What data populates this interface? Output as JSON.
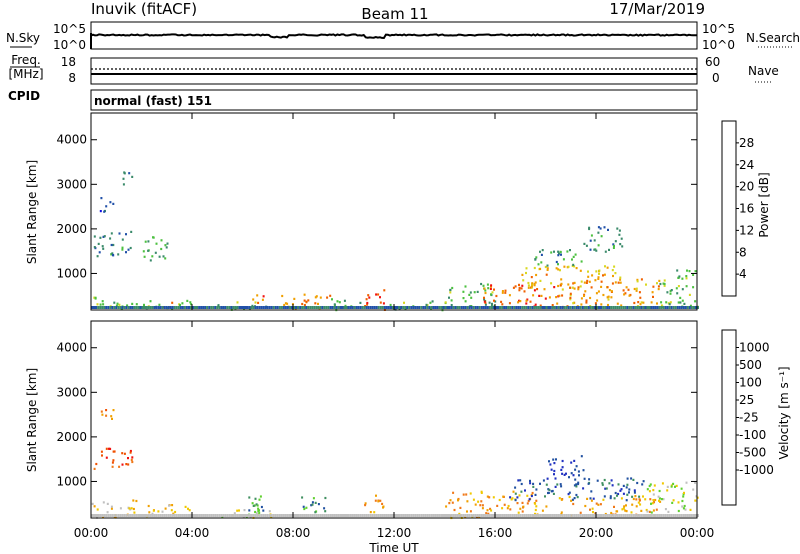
{
  "header": {
    "station": "Inuvik (fitACF)",
    "beam": "Beam 11",
    "date": "17/Mar/2019"
  },
  "noise_panel": {
    "left_label": "N.Sky",
    "left_ticks": [
      "10^5",
      "10^0"
    ],
    "right_ticks": [
      "10^5",
      "10^0"
    ],
    "right_label": "N.Search"
  },
  "freq_panel": {
    "left_label_line1": "Freq.",
    "left_label_line2": "[MHz]",
    "left_ticks": [
      "18",
      "8"
    ],
    "right_ticks": [
      "60",
      "0"
    ],
    "right_label": "Nave"
  },
  "cpid_panel": {
    "label": "CPID",
    "text": "normal (fast) 151"
  },
  "x_axis": {
    "label": "Time UT",
    "ticks": [
      "00:00",
      "04:00",
      "08:00",
      "12:00",
      "16:00",
      "20:00",
      "00:00"
    ]
  },
  "colors": {
    "power_scale": [
      "#1010e0",
      "#2050a8",
      "#3a8a6a",
      "#4cc040",
      "#d8d820",
      "#f0a000",
      "#f06000",
      "#f01010"
    ],
    "velocity_scale": [
      "#f01010",
      "#f05000",
      "#f07818",
      "#f0a000",
      "#f0c800",
      "#c0c0c0",
      "#60d030",
      "#409060",
      "#2050a0",
      "#2030c0"
    ]
  },
  "chart_data": [
    {
      "type": "heatmap",
      "name": "power",
      "ylabel": "Slant Range [km]",
      "xlabel": "",
      "x_range_hours": [
        0,
        24
      ],
      "ylim": [
        180,
        4600
      ],
      "yticks": [
        "1000",
        "2000",
        "3000",
        "4000"
      ],
      "ytick_values": [
        1000,
        2000,
        3000,
        4000
      ],
      "colorbar": {
        "label": "Power [dB]",
        "ticks": [
          "4",
          "8",
          "12",
          "16",
          "20",
          "24",
          "28"
        ],
        "range": [
          0,
          30
        ]
      },
      "regions": [
        {
          "t0": 0.0,
          "t1": 1.8,
          "r0": 200,
          "r1": 500,
          "v": 15
        },
        {
          "t0": 0.1,
          "t1": 1.6,
          "r0": 1400,
          "r1": 2000,
          "v": 9
        },
        {
          "t0": 0.3,
          "t1": 0.9,
          "r0": 2400,
          "r1": 2750,
          "v": 6
        },
        {
          "t0": 1.0,
          "t1": 1.6,
          "r0": 3000,
          "r1": 3300,
          "v": 7
        },
        {
          "t0": 2.0,
          "t1": 3.0,
          "r0": 1300,
          "r1": 1900,
          "v": 13
        },
        {
          "t0": 2.0,
          "t1": 4.0,
          "r0": 200,
          "r1": 420,
          "v": 14
        },
        {
          "t0": 2.8,
          "t1": 3.3,
          "r0": 200,
          "r1": 380,
          "v": 27
        },
        {
          "t0": 5.0,
          "t1": 7.2,
          "r0": 200,
          "r1": 380,
          "v": 14
        },
        {
          "t0": 6.2,
          "t1": 6.8,
          "r0": 250,
          "r1": 560,
          "v": 26
        },
        {
          "t0": 7.5,
          "t1": 9.5,
          "r0": 220,
          "r1": 600,
          "v": 24
        },
        {
          "t0": 9.5,
          "t1": 10.8,
          "r0": 200,
          "r1": 450,
          "v": 13
        },
        {
          "t0": 10.8,
          "t1": 11.6,
          "r0": 200,
          "r1": 700,
          "v": 28
        },
        {
          "t0": 11.6,
          "t1": 14.0,
          "r0": 200,
          "r1": 400,
          "v": 14
        },
        {
          "t0": 14.0,
          "t1": 16.0,
          "r0": 250,
          "r1": 800,
          "v": 13
        },
        {
          "t0": 15.5,
          "t1": 18.5,
          "r0": 250,
          "r1": 800,
          "v": 26
        },
        {
          "t0": 17.0,
          "t1": 21.0,
          "r0": 700,
          "r1": 1200,
          "v": 21
        },
        {
          "t0": 18.5,
          "t1": 22.5,
          "r0": 250,
          "r1": 900,
          "v": 23
        },
        {
          "t0": 22.5,
          "t1": 24.0,
          "r0": 250,
          "r1": 1100,
          "v": 14
        },
        {
          "t0": 17.5,
          "t1": 19.5,
          "r0": 1200,
          "r1": 1600,
          "v": 11
        },
        {
          "t0": 19.5,
          "t1": 21.0,
          "r0": 1500,
          "r1": 2100,
          "v": 9
        }
      ]
    },
    {
      "type": "heatmap",
      "name": "velocity",
      "ylabel": "Slant Range [km]",
      "xlabel": "Time UT",
      "x_range_hours": [
        0,
        24
      ],
      "ylim": [
        180,
        4600
      ],
      "yticks": [
        "1000",
        "2000",
        "3000",
        "4000"
      ],
      "ytick_values": [
        1000,
        2000,
        3000,
        4000
      ],
      "colorbar": {
        "label": "Velocity [m s⁻¹]",
        "ticks": [
          "1000",
          "500",
          "100",
          "25",
          "-25",
          "-100",
          "-500",
          "-1000"
        ]
      },
      "regions": [
        {
          "t0": 0.0,
          "t1": 1.8,
          "r0": 200,
          "r1": 600,
          "v": 4
        },
        {
          "t0": 0.1,
          "t1": 1.6,
          "r0": 1300,
          "r1": 1800,
          "v": 1
        },
        {
          "t0": 0.3,
          "t1": 0.9,
          "r0": 2400,
          "r1": 2750,
          "v": 2
        },
        {
          "t0": 2.0,
          "t1": 4.0,
          "r0": 200,
          "r1": 500,
          "v": 4
        },
        {
          "t0": 5.0,
          "t1": 7.2,
          "r0": 200,
          "r1": 500,
          "v": 5
        },
        {
          "t0": 6.0,
          "t1": 6.8,
          "r0": 300,
          "r1": 700,
          "v": 7
        },
        {
          "t0": 8.2,
          "t1": 9.3,
          "r0": 300,
          "r1": 700,
          "v": 7
        },
        {
          "t0": 10.8,
          "t1": 11.6,
          "r0": 300,
          "r1": 750,
          "v": 3
        },
        {
          "t0": 14.0,
          "t1": 18.0,
          "r0": 200,
          "r1": 800,
          "v": 3
        },
        {
          "t0": 16.5,
          "t1": 22.0,
          "r0": 600,
          "r1": 1100,
          "v": 8
        },
        {
          "t0": 18.5,
          "t1": 22.5,
          "r0": 250,
          "r1": 700,
          "v": 3
        },
        {
          "t0": 18.0,
          "t1": 19.5,
          "r0": 1100,
          "r1": 1600,
          "v": 9
        },
        {
          "t0": 22.0,
          "t1": 24.0,
          "r0": 300,
          "r1": 1000,
          "v": 5
        }
      ]
    }
  ]
}
